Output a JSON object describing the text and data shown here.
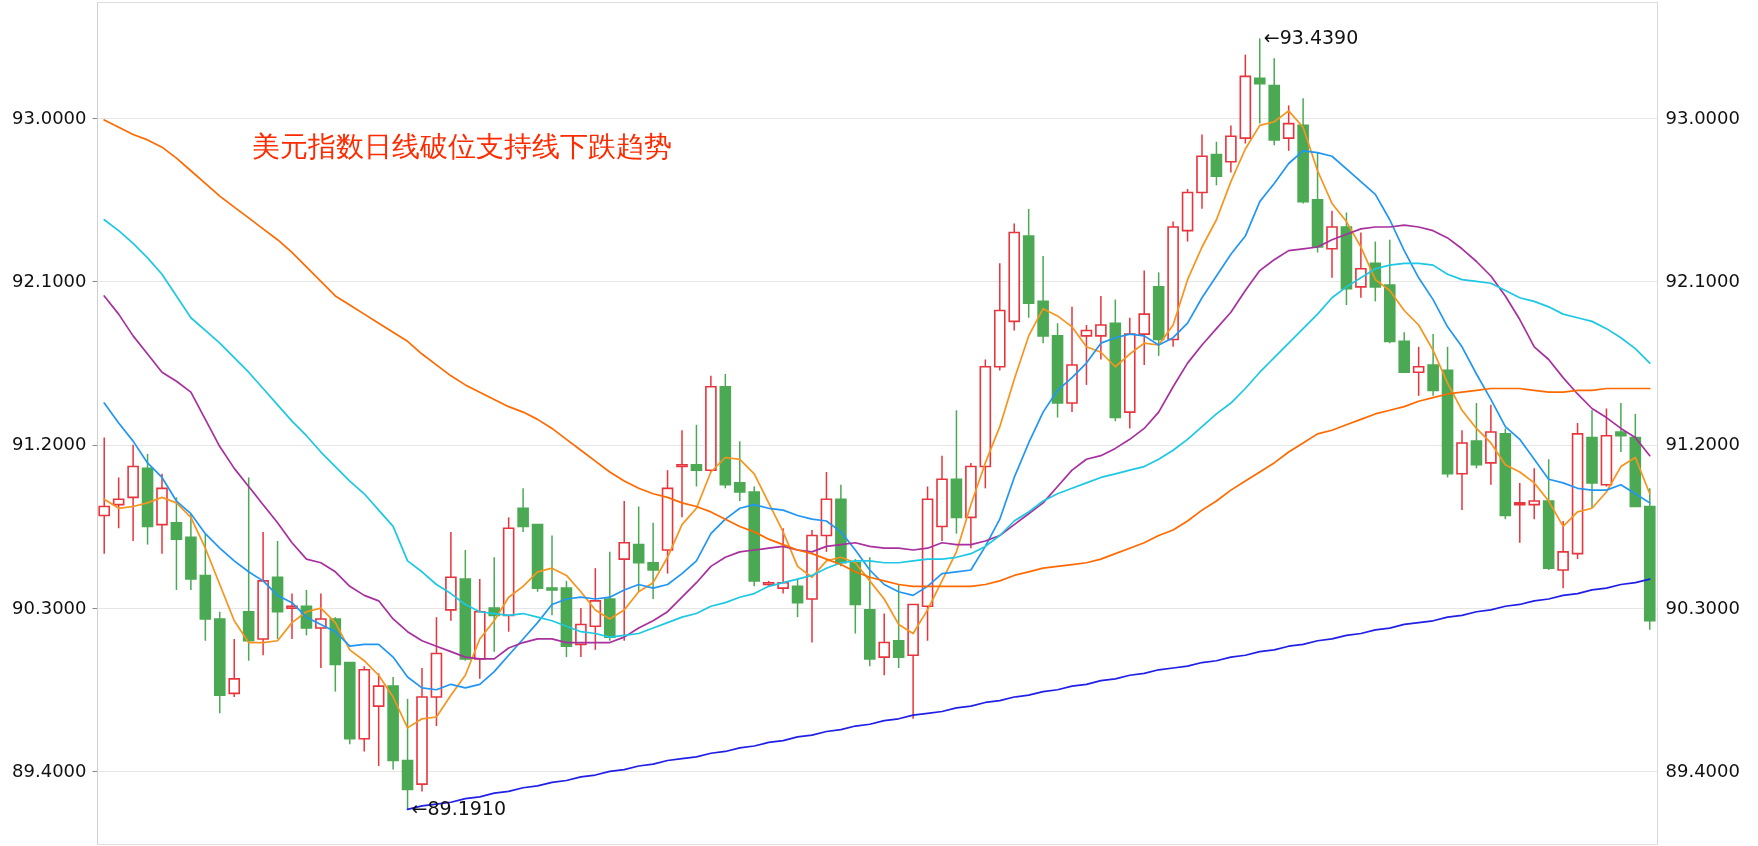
{
  "chart_data": {
    "type": "candlestick",
    "title": "美元指数日线破位支持线下跌趋势",
    "categories": [
      null,
      null,
      null,
      null,
      null,
      null,
      null,
      null,
      null,
      null,
      null,
      null,
      null,
      null,
      null,
      null,
      null,
      null,
      null,
      null,
      null,
      null,
      null,
      null,
      null,
      null,
      null,
      null,
      null,
      null,
      null,
      null,
      null,
      null,
      null,
      null,
      null,
      null,
      null,
      null,
      null,
      null,
      null,
      null,
      null,
      null,
      null,
      null,
      null,
      null,
      null,
      null,
      null,
      null,
      null,
      null,
      null,
      null,
      null,
      null,
      null,
      null,
      null,
      null,
      null,
      null,
      null,
      null,
      null,
      null,
      null,
      null,
      null,
      null,
      null,
      null,
      null,
      null,
      null,
      null,
      null,
      null,
      null,
      null,
      null,
      null,
      null,
      null,
      null,
      null,
      null,
      null,
      null,
      null,
      null,
      null,
      null,
      null,
      null,
      null,
      null,
      null,
      null,
      null,
      null,
      null,
      null,
      null
    ],
    "ohlc": [
      [
        90.81,
        91.24,
        90.6,
        90.86
      ],
      [
        90.87,
        91.02,
        90.74,
        90.9
      ],
      [
        90.91,
        91.2,
        90.67,
        91.08
      ],
      [
        91.07,
        91.15,
        90.65,
        90.75
      ],
      [
        90.76,
        91.04,
        90.6,
        90.96
      ],
      [
        90.77,
        90.91,
        90.4,
        90.68
      ],
      [
        90.69,
        90.82,
        90.4,
        90.46
      ],
      [
        90.48,
        90.71,
        90.12,
        90.24
      ],
      [
        90.24,
        90.28,
        89.72,
        89.82
      ],
      [
        89.83,
        90.13,
        89.81,
        89.91
      ],
      [
        90.28,
        91.02,
        90.01,
        90.12
      ],
      [
        90.13,
        90.72,
        90.04,
        90.45
      ],
      [
        90.47,
        90.67,
        90.13,
        90.28
      ],
      [
        90.3,
        90.38,
        90.13,
        90.31
      ],
      [
        90.31,
        90.4,
        90.15,
        90.19
      ],
      [
        90.19,
        90.38,
        89.97,
        90.24
      ],
      [
        90.24,
        90.25,
        89.84,
        89.99
      ],
      [
        90.0,
        90.0,
        89.55,
        89.58
      ],
      [
        89.58,
        89.98,
        89.51,
        89.96
      ],
      [
        89.76,
        89.94,
        89.43,
        89.87
      ],
      [
        89.87,
        89.92,
        89.41,
        89.46
      ],
      [
        89.46,
        89.8,
        89.191,
        89.3
      ],
      [
        89.33,
        89.97,
        89.29,
        89.81
      ],
      [
        89.81,
        90.25,
        89.65,
        90.05
      ],
      [
        90.29,
        90.72,
        90.23,
        90.47
      ],
      [
        90.46,
        90.62,
        90.01,
        90.02
      ],
      [
        90.02,
        90.46,
        89.91,
        90.28
      ],
      [
        90.3,
        90.58,
        90.06,
        90.26
      ],
      [
        90.26,
        90.8,
        90.17,
        90.74
      ],
      [
        90.85,
        90.96,
        90.72,
        90.75
      ],
      [
        90.76,
        90.76,
        90.39,
        90.41
      ],
      [
        90.41,
        90.7,
        90.26,
        90.4
      ],
      [
        90.41,
        90.45,
        90.03,
        90.09
      ],
      [
        90.1,
        90.3,
        90.03,
        90.21
      ],
      [
        90.2,
        90.52,
        90.07,
        90.34
      ],
      [
        90.35,
        90.61,
        90.12,
        90.14
      ],
      [
        90.57,
        90.89,
        90.12,
        90.66
      ],
      [
        90.65,
        90.86,
        90.39,
        90.55
      ],
      [
        90.55,
        90.77,
        90.35,
        90.51
      ],
      [
        90.62,
        91.06,
        90.49,
        90.96
      ],
      [
        91.08,
        91.28,
        90.8,
        91.09
      ],
      [
        91.09,
        91.31,
        90.97,
        91.06
      ],
      [
        91.06,
        91.58,
        91.05,
        91.52
      ],
      [
        91.52,
        91.59,
        90.96,
        90.98
      ],
      [
        90.99,
        91.22,
        90.89,
        90.94
      ],
      [
        90.94,
        90.97,
        90.42,
        90.45
      ],
      [
        90.43,
        90.45,
        90.42,
        90.44
      ],
      [
        90.41,
        90.74,
        90.38,
        90.44
      ],
      [
        90.42,
        90.46,
        90.25,
        90.33
      ],
      [
        90.35,
        90.73,
        90.11,
        90.7
      ],
      [
        90.7,
        91.05,
        90.61,
        90.9
      ],
      [
        90.9,
        90.98,
        90.53,
        90.55
      ],
      [
        90.55,
        90.57,
        90.16,
        90.32
      ],
      [
        90.29,
        90.58,
        89.98,
        90.02
      ],
      [
        90.03,
        90.27,
        89.93,
        90.11
      ],
      [
        90.12,
        90.43,
        89.97,
        90.03
      ],
      [
        90.04,
        90.32,
        89.69,
        90.32
      ],
      [
        90.31,
        90.97,
        90.12,
        90.9
      ],
      [
        90.75,
        91.14,
        90.67,
        91.01
      ],
      [
        91.01,
        91.39,
        90.71,
        90.8
      ],
      [
        90.8,
        91.1,
        90.63,
        91.08
      ],
      [
        91.08,
        91.67,
        90.96,
        91.63
      ],
      [
        91.63,
        92.2,
        91.61,
        91.94
      ],
      [
        91.88,
        92.42,
        91.83,
        92.37
      ],
      [
        92.35,
        92.5,
        91.9,
        91.98
      ],
      [
        91.99,
        92.24,
        91.76,
        91.8
      ],
      [
        91.8,
        91.87,
        91.35,
        91.43
      ],
      [
        91.43,
        91.96,
        91.38,
        91.64
      ],
      [
        91.8,
        91.86,
        91.53,
        91.83
      ],
      [
        91.8,
        92.02,
        91.67,
        91.86
      ],
      [
        91.87,
        92.0,
        91.33,
        91.35
      ],
      [
        91.38,
        91.9,
        91.29,
        91.81
      ],
      [
        91.81,
        92.16,
        91.64,
        91.92
      ],
      [
        92.07,
        92.15,
        91.69,
        91.78
      ],
      [
        91.78,
        92.43,
        91.74,
        92.4
      ],
      [
        92.38,
        92.61,
        92.32,
        92.59
      ],
      [
        92.59,
        92.91,
        92.5,
        92.79
      ],
      [
        92.8,
        92.87,
        92.63,
        92.68
      ],
      [
        92.76,
        92.96,
        92.7,
        92.9
      ],
      [
        92.89,
        93.35,
        92.86,
        93.23
      ],
      [
        93.22,
        93.439,
        92.97,
        93.19
      ],
      [
        93.18,
        93.33,
        92.85,
        92.88
      ],
      [
        92.89,
        93.07,
        92.82,
        92.97
      ],
      [
        92.96,
        93.11,
        92.53,
        92.54
      ],
      [
        92.55,
        92.81,
        92.26,
        92.29
      ],
      [
        92.28,
        92.49,
        92.12,
        92.4
      ],
      [
        92.4,
        92.48,
        91.97,
        92.06
      ],
      [
        92.07,
        92.37,
        92.01,
        92.17
      ],
      [
        92.2,
        92.32,
        91.99,
        92.07
      ],
      [
        92.08,
        92.33,
        91.76,
        91.77
      ],
      [
        91.77,
        91.82,
        91.6,
        91.6
      ],
      [
        91.6,
        91.74,
        91.47,
        91.63
      ],
      [
        91.64,
        91.81,
        91.47,
        91.5
      ],
      [
        91.61,
        91.74,
        91.02,
        91.04
      ],
      [
        91.04,
        91.28,
        90.84,
        91.21
      ],
      [
        91.22,
        91.43,
        91.07,
        91.09
      ],
      [
        91.1,
        91.42,
        90.98,
        91.27
      ],
      [
        91.26,
        91.29,
        90.79,
        90.81
      ],
      [
        90.87,
        90.99,
        90.66,
        90.88
      ],
      [
        90.87,
        91.07,
        90.79,
        90.89
      ],
      [
        90.89,
        91.12,
        90.51,
        90.52
      ],
      [
        90.51,
        90.78,
        90.41,
        90.61
      ],
      [
        90.6,
        91.32,
        90.57,
        91.26
      ],
      [
        91.24,
        91.39,
        90.85,
        90.99
      ],
      [
        90.98,
        91.4,
        90.97,
        91.25
      ],
      [
        91.27,
        91.43,
        91.16,
        91.25
      ],
      [
        91.24,
        91.37,
        90.86,
        90.86
      ],
      [
        90.86,
        90.96,
        90.18,
        90.23
      ]
    ],
    "colors": [
      "#e8343c",
      "#e8343c",
      "#e8343c",
      "#4ba953",
      "#e8343c",
      "#4ba953",
      "#4ba953",
      "#4ba953",
      "#4ba953",
      "#e8343c",
      "#4ba953",
      "#e8343c",
      "#4ba953",
      "#e8343c",
      "#4ba953",
      "#e8343c",
      "#4ba953",
      "#4ba953",
      "#e8343c",
      "#e8343c",
      "#4ba953",
      "#4ba953",
      "#e8343c",
      "#e8343c",
      "#e8343c",
      "#4ba953",
      "#e8343c",
      "#4ba953",
      "#e8343c",
      "#4ba953",
      "#4ba953",
      "#4ba953",
      "#4ba953",
      "#e8343c",
      "#e8343c",
      "#4ba953",
      "#e8343c",
      "#4ba953",
      "#4ba953",
      "#e8343c",
      "#e8343c",
      "#4ba953",
      "#e8343c",
      "#4ba953",
      "#4ba953",
      "#4ba953",
      "#e8343c",
      "#e8343c",
      "#4ba953",
      "#e8343c",
      "#e8343c",
      "#4ba953",
      "#4ba953",
      "#4ba953",
      "#e8343c",
      "#4ba953",
      "#e8343c",
      "#e8343c",
      "#e8343c",
      "#4ba953",
      "#e8343c",
      "#e8343c",
      "#e8343c",
      "#e8343c",
      "#4ba953",
      "#4ba953",
      "#4ba953",
      "#e8343c",
      "#e8343c",
      "#e8343c",
      "#4ba953",
      "#e8343c",
      "#e8343c",
      "#4ba953",
      "#e8343c",
      "#e8343c",
      "#e8343c",
      "#4ba953",
      "#e8343c",
      "#e8343c",
      "#4ba953",
      "#4ba953",
      "#e8343c",
      "#4ba953",
      "#4ba953",
      "#e8343c",
      "#4ba953",
      "#e8343c",
      "#4ba953",
      "#4ba953",
      "#4ba953",
      "#e8343c",
      "#4ba953",
      "#4ba953",
      "#e8343c",
      "#4ba953",
      "#e8343c",
      "#4ba953",
      "#e8343c",
      "#e8343c",
      "#4ba953",
      "#e8343c",
      "#e8343c",
      "#4ba953",
      "#e8343c",
      "#4ba953",
      "#4ba953",
      "#4ba953"
    ],
    "series": [
      {
        "type": "line",
        "color": "#f7941d",
        "values": [
          90.9,
          90.85,
          90.86,
          90.88,
          90.91,
          90.88,
          90.8,
          90.63,
          90.43,
          90.23,
          90.11,
          90.11,
          90.12,
          90.22,
          90.28,
          90.3,
          90.22,
          90.07,
          90.01,
          89.93,
          89.81,
          89.64,
          89.69,
          89.7,
          89.82,
          89.93,
          90.13,
          90.23,
          90.36,
          90.42,
          90.5,
          90.52,
          90.48,
          90.39,
          90.29,
          90.24,
          90.29,
          90.39,
          90.44,
          90.58,
          90.76,
          90.85,
          91.05,
          91.13,
          91.12,
          91.04,
          90.88,
          90.72,
          90.53,
          90.47,
          90.56,
          90.58,
          90.55,
          90.45,
          90.35,
          90.21,
          90.16,
          90.29,
          90.45,
          90.61,
          90.87,
          91.1,
          91.3,
          91.56,
          91.8,
          91.95,
          91.91,
          91.85,
          91.74,
          91.71,
          91.63,
          91.7,
          91.76,
          91.75,
          91.86,
          92.11,
          92.29,
          92.44,
          92.65,
          92.83,
          92.96,
          92.98,
          93.04,
          92.95,
          92.71,
          92.53,
          92.43,
          92.29,
          92.11,
          92.05,
          91.94,
          91.86,
          91.72,
          91.54,
          91.39,
          91.29,
          91.21,
          91.09,
          91.05,
          90.99,
          90.89,
          90.75,
          90.83,
          90.85,
          90.94,
          91.08,
          91.13,
          90.93
        ]
      },
      {
        "type": "line",
        "color": "#2196f3",
        "values": [
          91.43,
          91.32,
          91.22,
          91.1,
          91.02,
          90.89,
          90.82,
          90.71,
          90.63,
          90.56,
          90.5,
          90.45,
          90.37,
          90.33,
          90.25,
          90.21,
          90.17,
          90.09,
          90.1,
          90.1,
          90.03,
          89.92,
          89.86,
          89.85,
          89.88,
          89.86,
          89.88,
          89.95,
          90.04,
          90.13,
          90.22,
          90.32,
          90.35,
          90.36,
          90.35,
          90.36,
          90.4,
          90.43,
          90.41,
          90.43,
          90.49,
          90.56,
          90.71,
          90.79,
          90.85,
          90.87,
          90.85,
          90.84,
          90.81,
          90.79,
          90.78,
          90.72,
          90.62,
          90.51,
          90.43,
          90.39,
          90.37,
          90.42,
          90.49,
          90.5,
          90.51,
          90.64,
          90.79,
          91.02,
          91.21,
          91.38,
          91.5,
          91.57,
          91.65,
          91.76,
          91.79,
          91.81,
          91.8,
          91.75,
          91.79,
          91.87,
          92.01,
          92.13,
          92.25,
          92.35,
          92.54,
          92.64,
          92.75,
          92.82,
          92.81,
          92.79,
          92.72,
          92.65,
          92.58,
          92.44,
          92.27,
          92.12,
          92.0,
          91.85,
          91.74,
          91.59,
          91.45,
          91.3,
          91.23,
          91.12,
          91.01,
          90.99,
          90.96,
          90.95,
          90.95,
          90.98,
          90.93,
          90.88
        ]
      },
      {
        "type": "line",
        "color": "#a8309e",
        "values": [
          92.02,
          91.92,
          91.8,
          91.7,
          91.6,
          91.55,
          91.49,
          91.34,
          91.19,
          91.07,
          90.97,
          90.87,
          90.77,
          90.66,
          90.57,
          90.55,
          90.5,
          90.42,
          90.37,
          90.34,
          90.24,
          90.17,
          90.12,
          90.09,
          90.06,
          90.03,
          90.02,
          90.02,
          90.08,
          90.11,
          90.13,
          90.13,
          90.11,
          90.11,
          90.11,
          90.11,
          90.14,
          90.19,
          90.23,
          90.28,
          90.36,
          90.44,
          90.53,
          90.58,
          90.61,
          90.62,
          90.63,
          90.64,
          90.62,
          90.61,
          90.64,
          90.65,
          90.66,
          90.64,
          90.63,
          90.63,
          90.62,
          90.63,
          90.66,
          90.65,
          90.65,
          90.67,
          90.7,
          90.76,
          90.82,
          90.88,
          90.97,
          91.06,
          91.12,
          91.14,
          91.18,
          91.23,
          91.29,
          91.38,
          91.52,
          91.65,
          91.75,
          91.84,
          91.93,
          92.05,
          92.16,
          92.22,
          92.27,
          92.28,
          92.29,
          92.33,
          92.36,
          92.39,
          92.4,
          92.4,
          92.41,
          92.4,
          92.38,
          92.34,
          92.28,
          92.21,
          92.13,
          92.02,
          91.89,
          91.74,
          91.67,
          91.57,
          91.48,
          91.4,
          91.35,
          91.29,
          91.24,
          91.14
        ]
      },
      {
        "type": "line",
        "color": "#1cc8e3",
        "values": [
          92.44,
          92.38,
          92.31,
          92.23,
          92.14,
          92.02,
          91.9,
          91.83,
          91.76,
          91.68,
          91.6,
          91.51,
          91.42,
          91.33,
          91.25,
          91.16,
          91.08,
          91.0,
          90.93,
          90.84,
          90.75,
          90.56,
          90.5,
          90.43,
          90.38,
          90.32,
          90.28,
          90.27,
          90.26,
          90.27,
          90.25,
          90.23,
          90.2,
          90.17,
          90.16,
          90.14,
          90.15,
          90.16,
          90.19,
          90.22,
          90.25,
          90.27,
          90.31,
          90.33,
          90.36,
          90.38,
          90.42,
          90.44,
          90.46,
          90.48,
          90.52,
          90.55,
          90.56,
          90.56,
          90.55,
          90.55,
          90.56,
          90.57,
          90.57,
          90.58,
          90.6,
          90.64,
          90.7,
          90.78,
          90.83,
          90.89,
          90.93,
          90.96,
          90.99,
          91.02,
          91.04,
          91.06,
          91.08,
          91.12,
          91.17,
          91.23,
          91.3,
          91.37,
          91.43,
          91.51,
          91.6,
          91.68,
          91.76,
          91.84,
          91.92,
          92.01,
          92.07,
          92.12,
          92.17,
          92.19,
          92.2,
          92.2,
          92.19,
          92.14,
          92.11,
          92.1,
          92.09,
          92.05,
          92.01,
          91.99,
          91.96,
          91.92,
          91.9,
          91.88,
          91.84,
          91.79,
          91.73,
          91.65
        ]
      },
      {
        "type": "line",
        "color": "#ff6a00",
        "values": [
          92.99,
          92.95,
          92.91,
          92.88,
          92.84,
          92.78,
          92.71,
          92.64,
          92.57,
          92.51,
          92.45,
          92.39,
          92.33,
          92.26,
          92.18,
          92.1,
          92.02,
          91.97,
          91.92,
          91.87,
          91.82,
          91.77,
          91.7,
          91.64,
          91.58,
          91.53,
          91.49,
          91.45,
          91.41,
          91.38,
          91.34,
          91.29,
          91.23,
          91.17,
          91.11,
          91.05,
          91.0,
          90.96,
          90.93,
          90.91,
          90.88,
          90.86,
          90.83,
          90.79,
          90.75,
          90.72,
          90.68,
          90.65,
          90.62,
          90.6,
          90.57,
          90.54,
          90.5,
          90.47,
          90.45,
          90.43,
          90.42,
          90.42,
          90.42,
          90.42,
          90.42,
          90.43,
          90.45,
          90.48,
          90.5,
          90.52,
          90.53,
          90.54,
          90.55,
          90.57,
          90.6,
          90.63,
          90.66,
          90.7,
          90.73,
          90.78,
          90.84,
          90.89,
          90.95,
          91.0,
          91.05,
          91.1,
          91.16,
          91.21,
          91.26,
          91.28,
          91.31,
          91.34,
          91.37,
          91.39,
          91.41,
          91.44,
          91.46,
          91.48,
          91.49,
          91.5,
          91.51,
          91.51,
          91.51,
          91.5,
          91.49,
          91.49,
          91.5,
          91.5,
          91.51,
          91.51,
          91.51,
          91.51
        ]
      },
      {
        "type": "line",
        "color": "#1f1fe6",
        "values": [
          null,
          null,
          null,
          null,
          null,
          null,
          null,
          null,
          null,
          null,
          null,
          null,
          null,
          null,
          null,
          null,
          null,
          null,
          null,
          null,
          null,
          89.191,
          89.21,
          89.22,
          89.23,
          89.25,
          89.26,
          89.28,
          89.29,
          89.31,
          89.32,
          89.34,
          89.35,
          89.37,
          89.38,
          89.4,
          89.41,
          89.43,
          89.44,
          89.46,
          89.47,
          89.48,
          89.5,
          89.51,
          89.53,
          89.54,
          89.56,
          89.57,
          89.59,
          89.6,
          89.62,
          89.63,
          89.65,
          89.66,
          89.68,
          89.69,
          89.71,
          89.72,
          89.73,
          89.75,
          89.76,
          89.78,
          89.79,
          89.81,
          89.82,
          89.84,
          89.85,
          89.87,
          89.88,
          89.9,
          89.91,
          89.93,
          89.94,
          89.96,
          89.97,
          89.98,
          90.0,
          90.01,
          90.03,
          90.04,
          90.06,
          90.07,
          90.09,
          90.1,
          90.12,
          90.13,
          90.15,
          90.16,
          90.18,
          90.19,
          90.21,
          90.22,
          90.23,
          90.25,
          90.26,
          90.28,
          90.29,
          90.31,
          90.32,
          90.34,
          90.35,
          90.37,
          90.38,
          90.4,
          90.41,
          90.43,
          90.44,
          90.46
        ]
      }
    ],
    "annotations": [
      "←93.4390",
      "←89.1910"
    ],
    "ylim": [
      89.0,
      93.64
    ],
    "yticks": [
      {
        "value": 89.4,
        "label": "89.4000"
      },
      {
        "value": 90.3,
        "label": "90.3000"
      },
      {
        "value": 91.2,
        "label": "91.2000"
      },
      {
        "value": 92.1,
        "label": "92.1000"
      },
      {
        "value": 93.0,
        "label": "93.0000"
      }
    ],
    "y2lim": [
      89.0,
      93.64
    ],
    "y2ticks": [
      {
        "value": 89.4,
        "label": "89.4000"
      },
      {
        "value": 90.3,
        "label": "90.3000"
      },
      {
        "value": 91.2,
        "label": "91.2000"
      },
      {
        "value": 92.1,
        "label": "92.1000"
      },
      {
        "value": 93.0,
        "label": "93.0000"
      }
    ],
    "grid": "y",
    "tick_labels": "y"
  }
}
